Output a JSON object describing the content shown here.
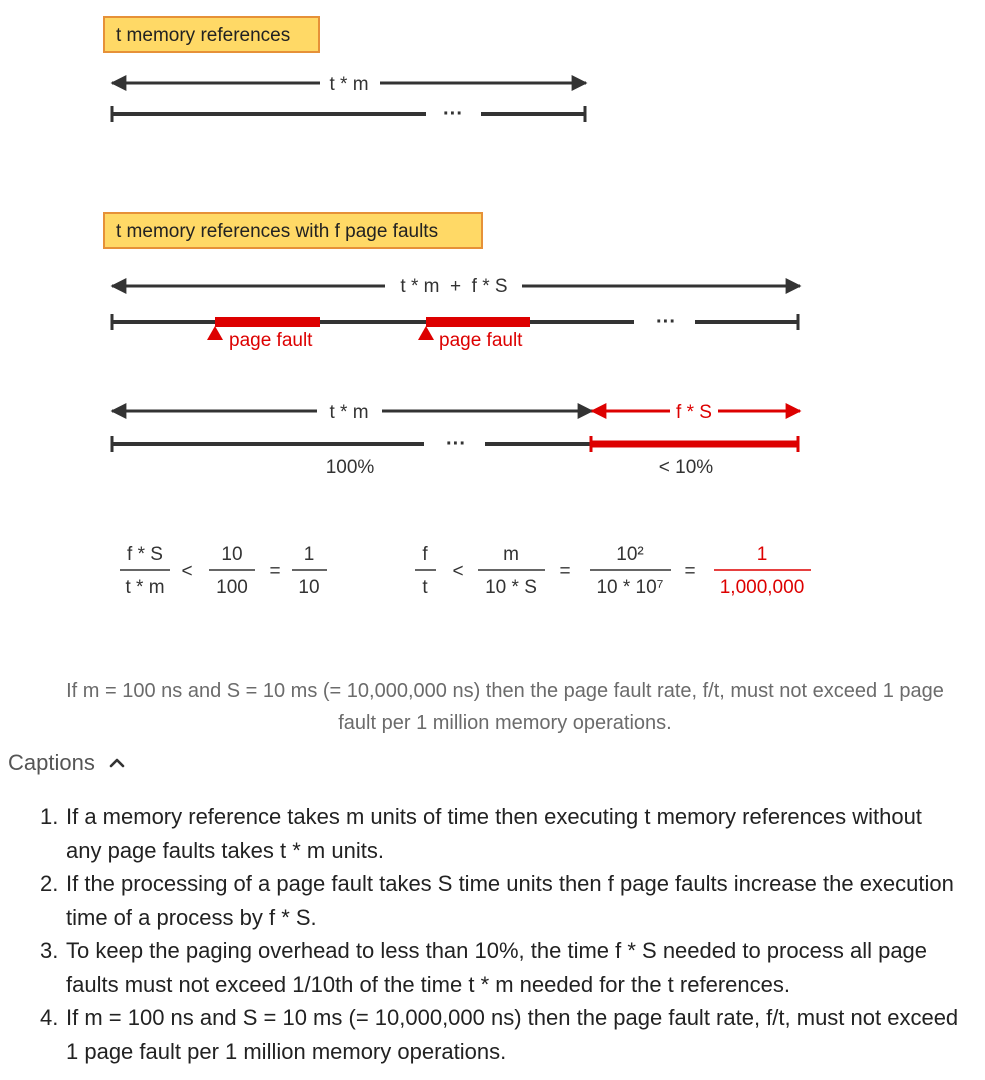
{
  "diagram": {
    "box1_label": "t memory references",
    "box2_label": "t memory references with f page faults",
    "arrow1_label": "t * m",
    "dots": "···",
    "arrow2_label": "t * m  +  f * S",
    "page_fault_label": "page fault",
    "arrow3_label": "t * m",
    "arrow3_red_label": "f * S",
    "percent_100": "100%",
    "percent_10": "< 10%",
    "colors": {
      "box_fill": "#ffd966",
      "box_border": "#e69138",
      "line": "#333333",
      "fault_red": "#dd0000"
    }
  },
  "formulas": {
    "left": {
      "frac1": {
        "num": "f * S",
        "den": "t * m"
      },
      "op1": "<",
      "frac2": {
        "num": "10",
        "den": "100"
      },
      "op2": "=",
      "frac3": {
        "num": "1",
        "den": "10"
      }
    },
    "right": {
      "frac1": {
        "num": "f",
        "den": "t"
      },
      "op1": "<",
      "frac2": {
        "num": "m",
        "den": "10 * S"
      },
      "op2": "=",
      "frac3": {
        "num": "10²",
        "den": "10 * 10⁷"
      },
      "op3": "=",
      "frac4": {
        "num": "1",
        "den": "1,000,000"
      }
    }
  },
  "summary": "If m = 100 ns and S = 10 ms (= 10,000,000 ns) then the page fault rate, f/t, must not exceed 1 page fault per 1 million memory operations.",
  "captions": {
    "toggle_label": "Captions",
    "toggle_icon": "chevron-up-icon",
    "items": [
      {
        "num": "1.",
        "text": "If a memory reference takes m units of time then executing t memory references without any page faults takes t * m units."
      },
      {
        "num": "2.",
        "text": "If the processing of a page fault takes S time units then f page faults increase the execution time of a process by f * S."
      },
      {
        "num": "3.",
        "text": "To keep the paging overhead to less than 10%, the time f * S needed to process all page faults must not exceed 1/10th of the time t * m needed for the t references."
      },
      {
        "num": "4.",
        "text": "If m = 100 ns and S = 10 ms (= 10,000,000 ns) then the page fault rate, f/t, must not exceed 1 page fault per 1 million memory operations."
      }
    ]
  }
}
